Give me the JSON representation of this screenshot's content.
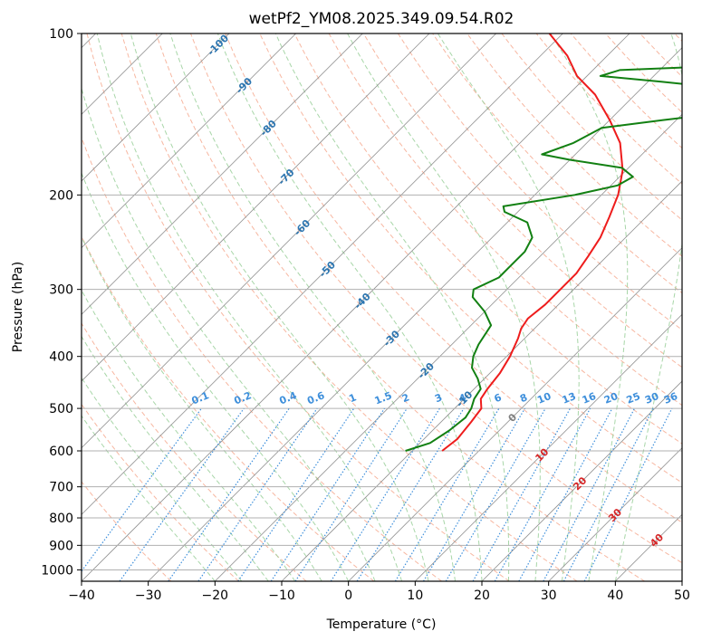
{
  "chart_data": {
    "type": "line",
    "title": "wetPf2_YM08.2025.349.09.54.R02",
    "xlabel": "Temperature (°C)",
    "ylabel": "Pressure (hPa)",
    "xlim": [
      -40,
      50
    ],
    "ylim": [
      1050,
      100
    ],
    "y_scale": "log",
    "skew": "skew-T",
    "grid": true,
    "x_ticks": [
      "−40",
      "−30",
      "−20",
      "−10",
      "0",
      "10",
      "20",
      "30",
      "40",
      "50"
    ],
    "y_ticks": [
      "100",
      "200",
      "300",
      "400",
      "500",
      "600",
      "700",
      "800",
      "900",
      "1000"
    ],
    "series": [
      {
        "color": "#ee1c1c",
        "values": [
          {
            "p": 600,
            "t": -5.5
          },
          {
            "p": 570,
            "t": -5.0
          },
          {
            "p": 530,
            "t": -5.5
          },
          {
            "p": 500,
            "t": -6.0
          },
          {
            "p": 480,
            "t": -7.5
          },
          {
            "p": 460,
            "t": -8.0
          },
          {
            "p": 430,
            "t": -8.5
          },
          {
            "p": 400,
            "t": -9.5
          },
          {
            "p": 370,
            "t": -11.0
          },
          {
            "p": 355,
            "t": -12.0
          },
          {
            "p": 340,
            "t": -12.5
          },
          {
            "p": 320,
            "t": -12.0
          },
          {
            "p": 300,
            "t": -12.0
          },
          {
            "p": 280,
            "t": -12.0
          },
          {
            "p": 260,
            "t": -12.8
          },
          {
            "p": 240,
            "t": -13.8
          },
          {
            "p": 220,
            "t": -15.5
          },
          {
            "p": 200,
            "t": -17.5
          },
          {
            "p": 180,
            "t": -20.5
          },
          {
            "p": 160,
            "t": -25.0
          },
          {
            "p": 145,
            "t": -30.0
          },
          {
            "p": 130,
            "t": -36.0
          },
          {
            "p": 120,
            "t": -41.5
          },
          {
            "p": 110,
            "t": -46.0
          },
          {
            "p": 100,
            "t": -52.0
          }
        ]
      },
      {
        "color": "#128012",
        "values": [
          {
            "p": 600,
            "t": -11.0
          },
          {
            "p": 580,
            "t": -8.5
          },
          {
            "p": 550,
            "t": -7.5
          },
          {
            "p": 520,
            "t": -7.0
          },
          {
            "p": 500,
            "t": -7.5
          },
          {
            "p": 480,
            "t": -8.5
          },
          {
            "p": 460,
            "t": -9.0
          },
          {
            "p": 440,
            "t": -11.0
          },
          {
            "p": 420,
            "t": -13.5
          },
          {
            "p": 400,
            "t": -15.0
          },
          {
            "p": 380,
            "t": -16.0
          },
          {
            "p": 350,
            "t": -17.0
          },
          {
            "p": 330,
            "t": -20.0
          },
          {
            "p": 310,
            "t": -24.0
          },
          {
            "p": 300,
            "t": -25.0
          },
          {
            "p": 285,
            "t": -23.0
          },
          {
            "p": 270,
            "t": -23.0
          },
          {
            "p": 255,
            "t": -23.0
          },
          {
            "p": 240,
            "t": -24.0
          },
          {
            "p": 225,
            "t": -27.0
          },
          {
            "p": 215,
            "t": -32.0
          },
          {
            "p": 210,
            "t": -33.0
          },
          {
            "p": 200,
            "t": -24.0
          },
          {
            "p": 192,
            "t": -19.0
          },
          {
            "p": 185,
            "t": -18.0
          },
          {
            "p": 178,
            "t": -21.0
          },
          {
            "p": 172,
            "t": -30.0
          },
          {
            "p": 168,
            "t": -35.0
          },
          {
            "p": 160,
            "t": -32.0
          },
          {
            "p": 150,
            "t": -30.0
          },
          {
            "p": 145,
            "t": -22.0
          },
          {
            "p": 140,
            "t": -13.0
          },
          {
            "p": 133,
            "t": -9.0
          },
          {
            "p": 128,
            "t": -13.0
          },
          {
            "p": 123,
            "t": -28.0
          },
          {
            "p": 120,
            "t": -38.0
          },
          {
            "p": 117,
            "t": -36.0
          },
          {
            "p": 115,
            "t": -22.0
          },
          {
            "p": 112,
            "t": -12.0
          },
          {
            "p": 108,
            "t": -11.0
          },
          {
            "p": 103,
            "t": -14.0
          },
          {
            "p": 100,
            "t": -14.0
          }
        ]
      }
    ],
    "isotherm_labels": [
      "-100",
      "-90",
      "-80",
      "-70",
      "-60",
      "-50",
      "-40",
      "-30",
      "-20",
      "-10",
      "0",
      "10",
      "20",
      "30",
      "40"
    ],
    "isotherm_values": [
      -100,
      -90,
      -80,
      -70,
      -60,
      -50,
      -40,
      -30,
      -20,
      -10,
      0,
      10,
      20,
      30,
      40
    ],
    "mixing_ratio_labels": [
      "0.1",
      "0.2",
      "0.4",
      "0.6",
      "1",
      "1.5",
      "2",
      "3",
      "4",
      "6",
      "8",
      "10",
      "13",
      "16",
      "20",
      "25",
      "30",
      "36"
    ],
    "mixing_ratio_values": [
      0.1,
      0.2,
      0.4,
      0.6,
      1,
      1.5,
      2,
      3,
      4,
      6,
      8,
      10,
      13,
      16,
      20,
      25,
      30,
      36
    ]
  },
  "colors": {
    "temperature": "#ee1c1c",
    "dewpoint": "#128012",
    "isotherm_label": "#2c75b0",
    "isotherm_warm_label": "#d62728",
    "isotherm_zero_label": "#808080",
    "mixing_ratio": "#3e8fdb",
    "dry_adiabat": "#f5a58a",
    "moist_adiabat": "#9fd19f",
    "isobar_grid": "#b0b0b0"
  }
}
